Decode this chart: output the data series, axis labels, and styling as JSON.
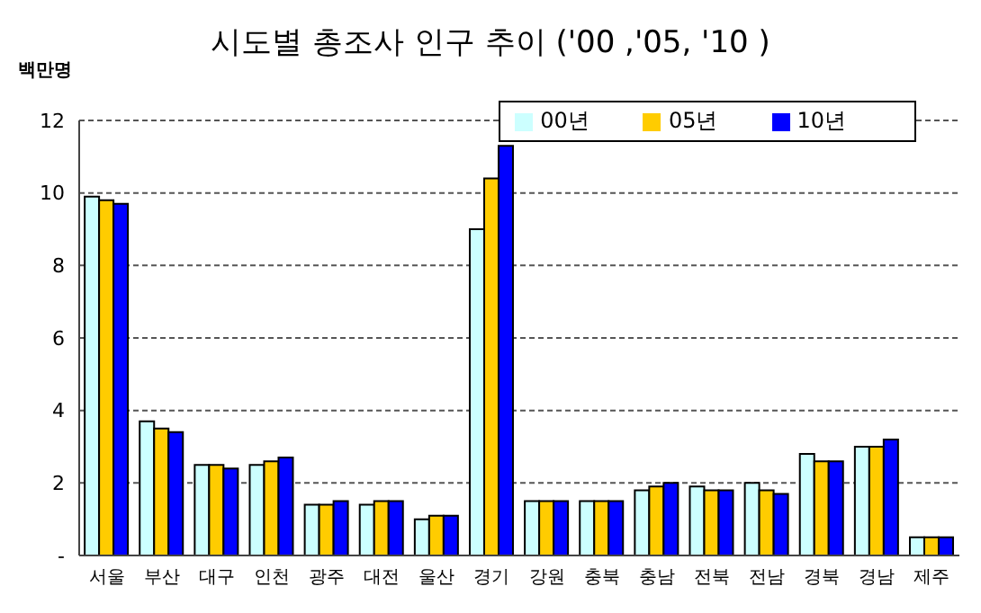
{
  "chart_data": {
    "type": "bar",
    "title": "시도별 총조사 인구 추이 ('00 ,'05, '10 )",
    "ylabel": "백만명",
    "categories": [
      "서울",
      "부산",
      "대구",
      "인천",
      "광주",
      "대전",
      "울산",
      "경기",
      "강원",
      "충북",
      "충남",
      "전북",
      "전남",
      "경북",
      "경남",
      "제주"
    ],
    "series": [
      {
        "name": "00년",
        "color": "#ccffff",
        "values": [
          9.9,
          3.7,
          2.5,
          2.5,
          1.4,
          1.4,
          1.0,
          9.0,
          1.5,
          1.5,
          1.8,
          1.9,
          2.0,
          2.8,
          3.0,
          0.5
        ]
      },
      {
        "name": "05년",
        "color": "#ffcc00",
        "values": [
          9.8,
          3.5,
          2.5,
          2.6,
          1.4,
          1.5,
          1.1,
          10.4,
          1.5,
          1.5,
          1.9,
          1.8,
          1.8,
          2.6,
          3.0,
          0.5
        ]
      },
      {
        "name": "10년",
        "color": "#0000ff",
        "values": [
          9.7,
          3.4,
          2.4,
          2.7,
          1.5,
          1.5,
          1.1,
          11.3,
          1.5,
          1.5,
          2.0,
          1.8,
          1.7,
          2.6,
          3.2,
          0.5
        ]
      }
    ],
    "ylim": [
      0,
      12
    ],
    "yticks": [
      {
        "value": 0,
        "label": "-"
      },
      2,
      4,
      6,
      8,
      10,
      12
    ],
    "grid": "y",
    "legend": "top right"
  }
}
